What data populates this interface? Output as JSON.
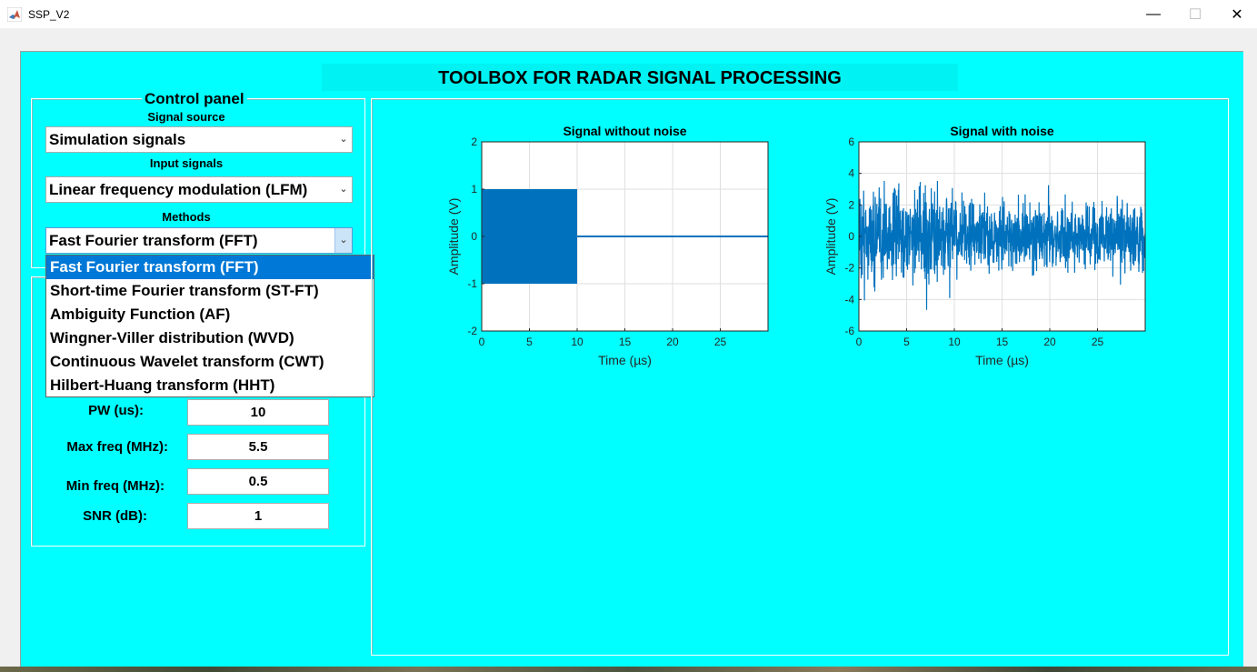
{
  "window": {
    "title": "SSP_V2",
    "minimize_icon": "minimize-icon",
    "maximize_icon": "maximize-icon",
    "close_icon": "close-icon"
  },
  "header": {
    "title": "TOOLBOX FOR RADAR SIGNAL PROCESSING"
  },
  "control_panel": {
    "title": "Control panel",
    "signal_source_label": "Signal source",
    "signal_source_value": "Simulation signals",
    "input_signals_label": "Input signals",
    "input_signals_value": "Linear frequency modulation (LFM)",
    "methods_label": "Methods",
    "methods_value": "Fast Fourier transform (FFT)",
    "methods_options": [
      "Fast Fourier transform (FFT)",
      "Short-time Fourier transform (ST-FT)",
      "Ambiguity Function (AF)",
      "Wingner-Viller distribution (WVD)",
      "Continuous Wavelet transform (CWT)",
      "Hilbert-Huang transform (HHT)"
    ]
  },
  "parameters": {
    "pw_label": "PW (us):",
    "pw_value": "10",
    "max_freq_label": "Max freq (MHz):",
    "max_freq_value": "5.5",
    "min_freq_label": "Min freq (MHz):",
    "min_freq_value": "0.5",
    "snr_label": "SNR (dB):",
    "snr_value": "1"
  },
  "colors": {
    "background": "#00ffff",
    "line": "#0072bd",
    "selected": "#0078d7"
  },
  "chart_data": [
    {
      "type": "line",
      "title": "Signal without noise",
      "xlabel": "Time (µs)",
      "ylabel": "Amplitude (V)",
      "xlim": [
        0,
        30
      ],
      "ylim": [
        -2,
        2
      ],
      "xticks": [
        0,
        5,
        10,
        15,
        20,
        25
      ],
      "yticks": [
        2,
        1,
        0,
        -1,
        -2
      ],
      "xtick_labels": [
        "0",
        "5",
        "10",
        "15",
        "20",
        "25"
      ],
      "ytick_labels": [
        "2",
        "1",
        "0",
        "-1",
        "-2"
      ],
      "pulse_width": 10,
      "pulse_amplitude": 1
    },
    {
      "type": "line",
      "title": "Signal with noise",
      "xlabel": "Time (µs)",
      "ylabel": "Amplitude (V)",
      "xlim": [
        0,
        30
      ],
      "ylim": [
        -6,
        6
      ],
      "xticks": [
        0,
        5,
        10,
        15,
        20,
        25
      ],
      "yticks": [
        6,
        4,
        2,
        0,
        -2,
        -4,
        -6
      ],
      "xtick_labels": [
        "0",
        "5",
        "10",
        "15",
        "20",
        "25"
      ],
      "ytick_labels": [
        "6",
        "4",
        "2",
        "0",
        "-2",
        "-4",
        "-6"
      ],
      "pulse_width": 10,
      "noise_peak_amplitude": 4.8
    }
  ]
}
